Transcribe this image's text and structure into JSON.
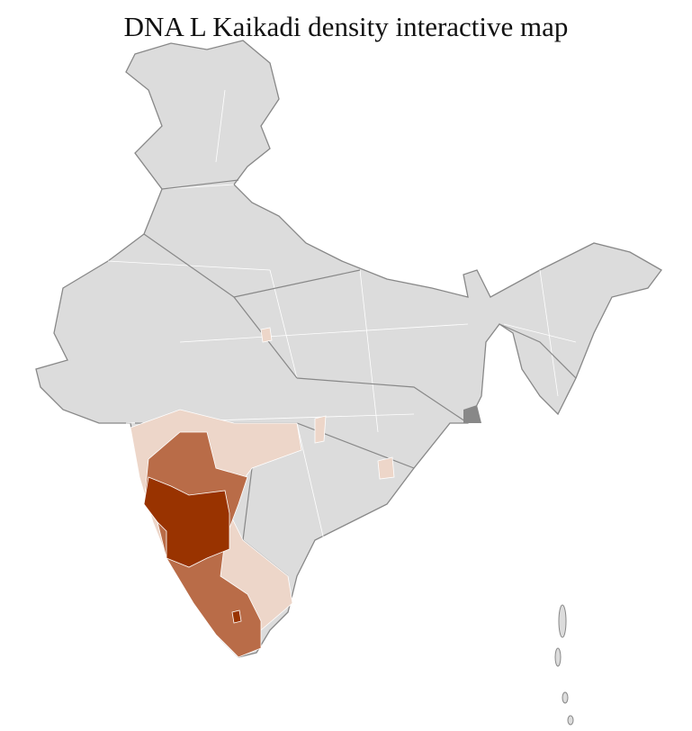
{
  "title": "DNA L Kaikadi density interactive map",
  "map": {
    "region": "India (district boundaries)",
    "colors": {
      "no_data": "#dcdcdc",
      "low": "#edd6c9",
      "medium": "#b96c48",
      "high": "#993300",
      "state_border": "#888888",
      "district_border": "#ffffff"
    }
  }
}
